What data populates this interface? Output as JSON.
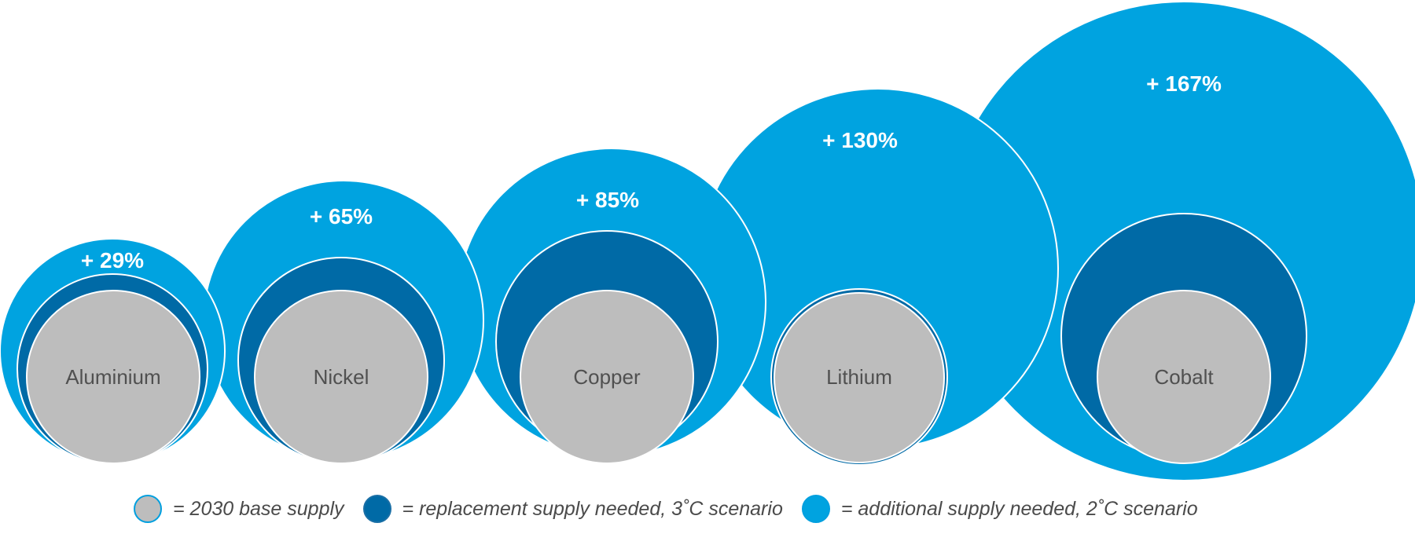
{
  "colors": {
    "base": "#bdbdbd",
    "replacement": "#006aa6",
    "additional": "#00a3e0"
  },
  "minerals": [
    {
      "name": "Aluminium",
      "increase_label": "+ 29%"
    },
    {
      "name": "Nickel",
      "increase_label": "+ 65%"
    },
    {
      "name": "Copper",
      "increase_label": "+ 85%"
    },
    {
      "name": "Lithium",
      "increase_label": "+  130%"
    },
    {
      "name": "Cobalt",
      "increase_label": "+ 167%"
    }
  ],
  "legend": {
    "base": "= 2030 base supply",
    "replacement": "= replacement supply needed, 3˚C scenario",
    "additional": "= additional supply needed, 2˚C scenario"
  }
}
